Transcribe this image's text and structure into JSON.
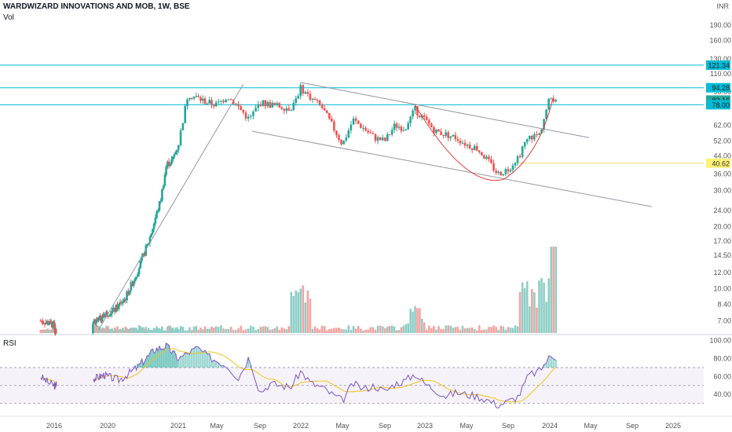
{
  "header": {
    "title": "WARDWIZARD INNOVATIONS AND MOB, 1W, BSE",
    "volume_label": "Vol",
    "currency": "INR",
    "rsi_label": "RSI"
  },
  "colors": {
    "up": "#26a69a",
    "down": "#ef5350",
    "up_vol": "#8fcfc7",
    "down_vol": "#f5a3a1",
    "cyan_line": "#00bcd4",
    "rsi_line": "#7e57c2",
    "rsi_ma": "#f0c419",
    "yellow_tag": "#fff176"
  },
  "chart_data": [
    {
      "type": "candlestick",
      "title": "WARDWIZARD INNOVATIONS AND MOB, 1W, BSE",
      "y_scale": "log",
      "ylim": [
        6.1,
        230
      ],
      "y_ticks": [
        "190.00",
        "160.00",
        "130.00",
        "110.00",
        "90.00",
        "62.00",
        "52.00",
        "44.00",
        "36.00",
        "30.00",
        "24.00",
        "20.00",
        "17.00",
        "14.50",
        "12.00",
        "10.00",
        "8.40",
        "7.00"
      ],
      "x_ticks": [
        "2016",
        "2020",
        "2021",
        "May",
        "Sep",
        "2022",
        "May",
        "Sep",
        "2023",
        "May",
        "Sep",
        "2024",
        "May",
        "Sep",
        "2025"
      ],
      "close_path": [
        [
          "2015-10",
          7.0
        ],
        [
          "2015-12",
          6.8
        ],
        [
          "2016-02",
          6.5
        ],
        [
          "2016-04",
          6.3
        ],
        [
          "2019-07",
          6.5
        ],
        [
          "2019-10",
          7.0
        ],
        [
          "2019-12",
          7.5
        ],
        [
          "2020-02",
          7.8
        ],
        [
          "2020-04",
          9.0
        ],
        [
          "2020-06",
          12.0
        ],
        [
          "2020-08",
          17.0
        ],
        [
          "2020-10",
          27.0
        ],
        [
          "2020-11",
          40.0
        ],
        [
          "2020-12",
          42.0
        ],
        [
          "2021-01",
          50.0
        ],
        [
          "2021-02",
          88.0
        ],
        [
          "2021-03",
          84.0
        ],
        [
          "2021-04",
          80.0
        ],
        [
          "2021-05",
          78.0
        ],
        [
          "2021-06",
          86.0
        ],
        [
          "2021-07",
          76.0
        ],
        [
          "2021-08",
          66.0
        ],
        [
          "2021-09",
          80.0
        ],
        [
          "2021-10",
          78.0
        ],
        [
          "2021-12",
          75.0
        ],
        [
          "2022-01",
          94.0
        ],
        [
          "2022-02",
          84.0
        ],
        [
          "2022-03",
          76.0
        ],
        [
          "2022-04",
          62.0
        ],
        [
          "2022-05",
          50.0
        ],
        [
          "2022-06",
          66.0
        ],
        [
          "2022-07",
          60.0
        ],
        [
          "2022-08",
          54.0
        ],
        [
          "2022-09",
          52.0
        ],
        [
          "2022-10",
          62.0
        ],
        [
          "2022-11",
          60.0
        ],
        [
          "2022-12",
          74.0
        ],
        [
          "2023-01",
          66.0
        ],
        [
          "2023-02",
          58.0
        ],
        [
          "2023-03",
          56.0
        ],
        [
          "2023-04",
          54.0
        ],
        [
          "2023-05",
          50.0
        ],
        [
          "2023-06",
          48.0
        ],
        [
          "2023-07",
          42.0
        ],
        [
          "2023-08",
          36.0
        ],
        [
          "2023-09",
          38.0
        ],
        [
          "2023-10",
          44.0
        ],
        [
          "2023-11",
          54.0
        ],
        [
          "2023-12",
          56.0
        ],
        [
          "2024-01",
          84.0
        ]
      ],
      "volume_scale_max": 100,
      "rsi_path": [
        [
          "2015-10",
          60
        ],
        [
          "2015-12",
          52
        ],
        [
          "2016-03",
          48
        ],
        [
          "2016-06",
          55
        ],
        [
          "2019-09",
          58
        ],
        [
          "2019-12",
          62
        ],
        [
          "2020-03",
          56
        ],
        [
          "2020-06",
          70
        ],
        [
          "2020-09",
          90
        ],
        [
          "2020-11",
          94
        ],
        [
          "2021-01",
          80
        ],
        [
          "2021-03",
          92
        ],
        [
          "2021-04",
          83
        ],
        [
          "2021-06",
          72
        ],
        [
          "2021-07",
          58
        ],
        [
          "2021-08",
          82
        ],
        [
          "2021-09",
          42
        ],
        [
          "2021-10",
          52
        ],
        [
          "2021-12",
          48
        ],
        [
          "2022-01",
          66
        ],
        [
          "2022-02",
          52
        ],
        [
          "2022-03",
          48
        ],
        [
          "2022-04",
          40
        ],
        [
          "2022-05",
          33
        ],
        [
          "2022-06",
          52
        ],
        [
          "2022-07",
          46
        ],
        [
          "2022-08",
          50
        ],
        [
          "2022-09",
          43
        ],
        [
          "2022-10",
          52
        ],
        [
          "2022-11",
          55
        ],
        [
          "2022-12",
          63
        ],
        [
          "2023-01",
          52
        ],
        [
          "2023-02",
          45
        ],
        [
          "2023-03",
          38
        ],
        [
          "2023-04",
          42
        ],
        [
          "2023-05",
          40
        ],
        [
          "2023-06",
          38
        ],
        [
          "2023-07",
          34
        ],
        [
          "2023-08",
          28
        ],
        [
          "2023-09",
          32
        ],
        [
          "2023-10",
          38
        ],
        [
          "2023-11",
          62
        ],
        [
          "2023-12",
          66
        ],
        [
          "2024-01",
          82
        ]
      ],
      "rsi_ticks": [
        "100.00",
        "80.00",
        "60.00",
        "40.00"
      ],
      "rsi_levels": [
        70,
        50,
        30
      ],
      "price_tags": [
        {
          "value": 121.34,
          "label": "121.34",
          "color": "#00bcd4",
          "line": true
        },
        {
          "value": 94.28,
          "label": "94.28",
          "color": "#00bcd4",
          "line": true
        },
        {
          "value": 82.16,
          "label": "82.16",
          "color": "#26a69a",
          "line": false
        },
        {
          "value": 78.0,
          "label": "78.00",
          "color": "#00bcd4",
          "line": true
        },
        {
          "value": 40.62,
          "label": "40.62",
          "color": "#fff176",
          "line": false
        }
      ]
    }
  ]
}
